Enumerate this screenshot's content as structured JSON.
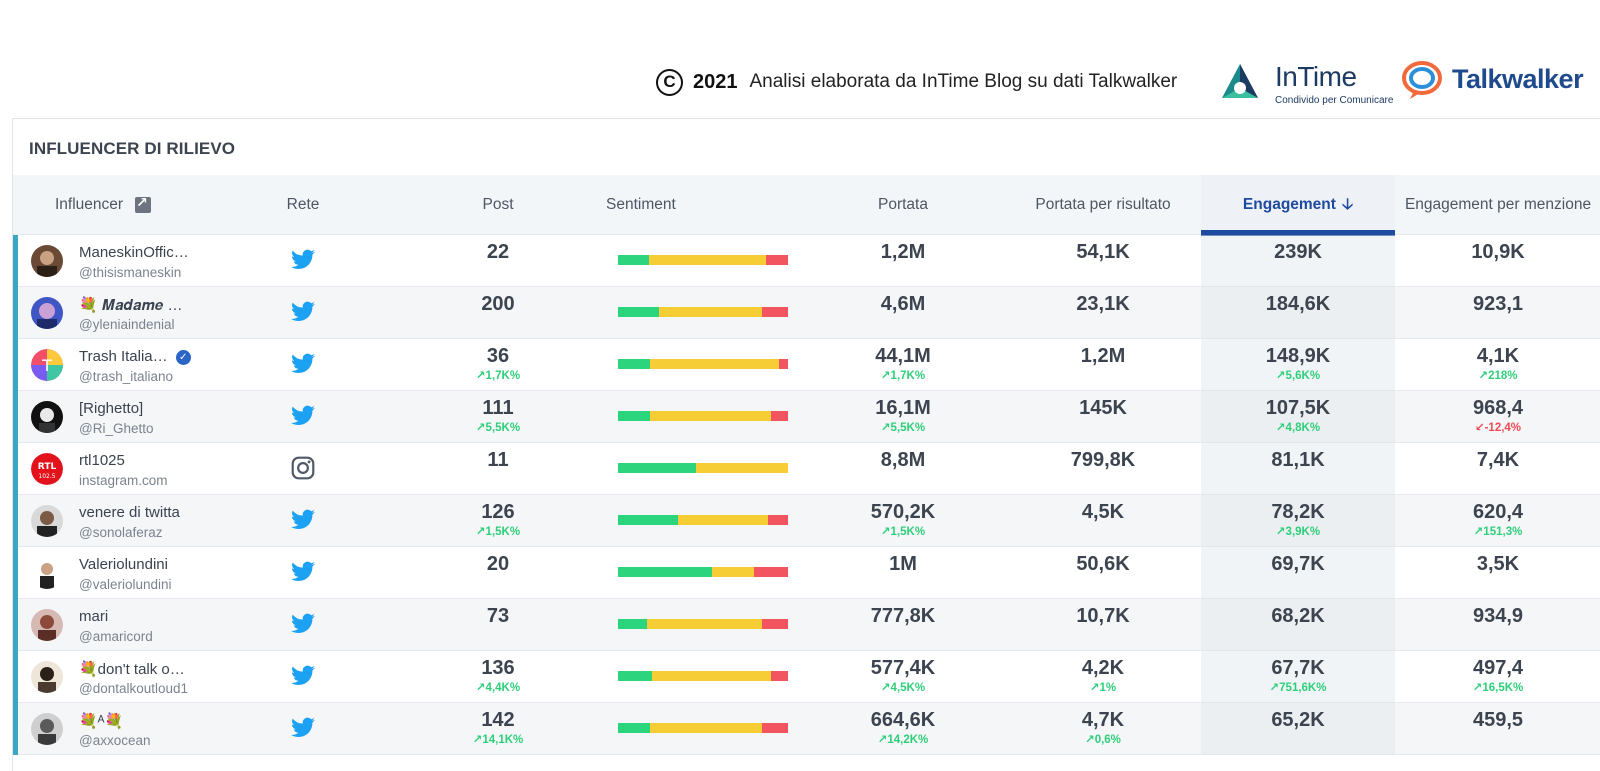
{
  "banner": {
    "copyright_glyph": "C",
    "year": "2021",
    "credit": "Analisi elaborata da InTime Blog su dati Talkwalker",
    "intime_name": "InTime",
    "intime_tagline": "Condivido per Comunicare",
    "talkwalker_name": "Talkwalker"
  },
  "panel": {
    "title": "INFLUENCER DI RILIEVO"
  },
  "columns": {
    "influencer": "Influencer",
    "network": "Rete",
    "posts": "Post",
    "sentiment": "Sentiment",
    "reach": "Portata",
    "reach_per_result": "Portata per risultato",
    "engagement": "Engagement",
    "engagement_per_mention": "Engagement per menzione"
  },
  "colors": {
    "accent": "#1e4aa0",
    "positive": "#2cd47e",
    "neutral": "#f7cd35",
    "negative": "#f2555f",
    "row_marker": "#3aa7c4"
  },
  "rows": [
    {
      "name": "ManeskinOffic…",
      "handle": "@thisismaneskin",
      "network": "twitter-icon",
      "verified": false,
      "posts": "22",
      "posts_delta": "",
      "reach": "1,2M",
      "reach_delta": "",
      "reach_per_result": "54,1K",
      "rpr_delta": "",
      "engagement": "239K",
      "eng_delta": "",
      "epm": "10,9K",
      "epm_delta": "",
      "epm_dir": "up",
      "sentiment": [
        0.18,
        0.69,
        0.13
      ]
    },
    {
      "name": "💐 𝑴𝒂𝒅𝒂𝒎𝒆 …",
      "handle": "@yleniaindenial",
      "network": "twitter-icon",
      "verified": false,
      "posts": "200",
      "posts_delta": "",
      "reach": "4,6M",
      "reach_delta": "",
      "reach_per_result": "23,1K",
      "rpr_delta": "",
      "engagement": "184,6K",
      "eng_delta": "",
      "epm": "923,1",
      "epm_delta": "",
      "epm_dir": "up",
      "sentiment": [
        0.24,
        0.61,
        0.15
      ]
    },
    {
      "name": "Trash Italia…",
      "handle": "@trash_italiano",
      "network": "twitter-icon",
      "verified": true,
      "posts": "36",
      "posts_delta": "↗1,7K%",
      "reach": "44,1M",
      "reach_delta": "↗1,7K%",
      "reach_per_result": "1,2M",
      "rpr_delta": "",
      "engagement": "148,9K",
      "eng_delta": "↗5,6K%",
      "epm": "4,1K",
      "epm_delta": "↗218%",
      "epm_dir": "up",
      "sentiment": [
        0.19,
        0.76,
        0.05
      ]
    },
    {
      "name": "[Righetto]",
      "handle": "@Ri_Ghetto",
      "network": "twitter-icon",
      "verified": false,
      "posts": "111",
      "posts_delta": "↗5,5K%",
      "reach": "16,1M",
      "reach_delta": "↗5,5K%",
      "reach_per_result": "145K",
      "rpr_delta": "",
      "engagement": "107,5K",
      "eng_delta": "↗4,8K%",
      "epm": "968,4",
      "epm_delta": "↙-12,4%",
      "epm_dir": "down",
      "sentiment": [
        0.19,
        0.71,
        0.1
      ]
    },
    {
      "name": "rtl1025",
      "handle": "instagram.com",
      "network": "instagram-icon",
      "verified": false,
      "posts": "11",
      "posts_delta": "",
      "reach": "8,8M",
      "reach_delta": "",
      "reach_per_result": "799,8K",
      "rpr_delta": "",
      "engagement": "81,1K",
      "eng_delta": "",
      "epm": "7,4K",
      "epm_delta": "",
      "epm_dir": "up",
      "sentiment": [
        0.46,
        0.54,
        0.0
      ]
    },
    {
      "name": "venere di twitta",
      "handle": "@sonolaferaz",
      "network": "twitter-icon",
      "verified": false,
      "posts": "126",
      "posts_delta": "↗1,5K%",
      "reach": "570,2K",
      "reach_delta": "↗1,5K%",
      "reach_per_result": "4,5K",
      "rpr_delta": "",
      "engagement": "78,2K",
      "eng_delta": "↗3,9K%",
      "epm": "620,4",
      "epm_delta": "↗151,3%",
      "epm_dir": "up",
      "sentiment": [
        0.35,
        0.53,
        0.12
      ]
    },
    {
      "name": "Valeriolundini",
      "handle": "@valeriolundini",
      "network": "twitter-icon",
      "verified": false,
      "posts": "20",
      "posts_delta": "",
      "reach": "1M",
      "reach_delta": "",
      "reach_per_result": "50,6K",
      "rpr_delta": "",
      "engagement": "69,7K",
      "eng_delta": "",
      "epm": "3,5K",
      "epm_delta": "",
      "epm_dir": "up",
      "sentiment": [
        0.55,
        0.25,
        0.2
      ]
    },
    {
      "name": "mari",
      "handle": "@amaricord",
      "network": "twitter-icon",
      "verified": false,
      "posts": "73",
      "posts_delta": "",
      "reach": "777,8K",
      "reach_delta": "",
      "reach_per_result": "10,7K",
      "rpr_delta": "",
      "engagement": "68,2K",
      "eng_delta": "",
      "epm": "934,9",
      "epm_delta": "",
      "epm_dir": "up",
      "sentiment": [
        0.17,
        0.68,
        0.15
      ]
    },
    {
      "name": "💐don't talk o…",
      "handle": "@dontalkoutloud1",
      "network": "twitter-icon",
      "verified": false,
      "posts": "136",
      "posts_delta": "↗4,4K%",
      "reach": "577,4K",
      "reach_delta": "↗4,5K%",
      "reach_per_result": "4,2K",
      "rpr_delta": "↗1%",
      "engagement": "67,7K",
      "eng_delta": "↗751,6K%",
      "epm": "497,4",
      "epm_delta": "↗16,5K%",
      "epm_dir": "up",
      "sentiment": [
        0.2,
        0.7,
        0.1
      ]
    },
    {
      "name": "💐ᴬ💐",
      "handle": "@axxocean",
      "network": "twitter-icon",
      "verified": false,
      "posts": "142",
      "posts_delta": "↗14,1K%",
      "reach": "664,6K",
      "reach_delta": "↗14,2K%",
      "reach_per_result": "4,7K",
      "rpr_delta": "↗0,6%",
      "engagement": "65,2K",
      "eng_delta": "",
      "epm": "459,5",
      "epm_delta": "",
      "epm_dir": "up",
      "sentiment": [
        0.19,
        0.66,
        0.15
      ]
    }
  ]
}
